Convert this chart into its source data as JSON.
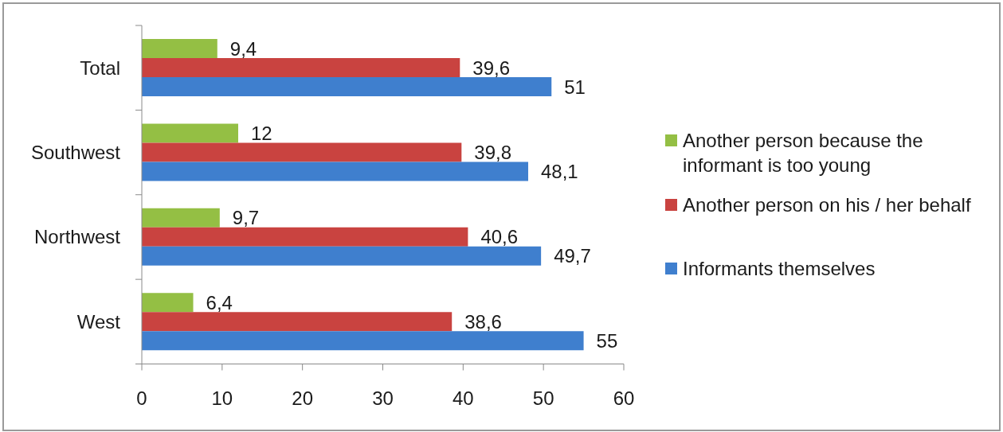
{
  "chart_data": {
    "type": "bar",
    "orientation": "horizontal",
    "categories": [
      "Total",
      "Southwest",
      "Northwest",
      "West"
    ],
    "series": [
      {
        "name": "Another person because the informant is too young",
        "color": "#94bf44",
        "values": [
          9.4,
          12,
          9.7,
          6.4
        ],
        "value_labels": [
          "9,4",
          "12",
          "9,7",
          "6,4"
        ]
      },
      {
        "name": "Another person on his / her behalf",
        "color": "#c94340",
        "values": [
          39.6,
          39.8,
          40.6,
          38.6
        ],
        "value_labels": [
          "39,6",
          "39,8",
          "40,6",
          "38,6"
        ]
      },
      {
        "name": "Informants themselves",
        "color": "#3f7fce",
        "values": [
          51,
          48.1,
          49.7,
          55
        ],
        "value_labels": [
          "51",
          "48,1",
          "49,7",
          "55"
        ]
      }
    ],
    "xlim": [
      0,
      60
    ],
    "xticks": [
      0,
      10,
      20,
      30,
      40,
      50,
      60
    ],
    "legend": "right"
  }
}
